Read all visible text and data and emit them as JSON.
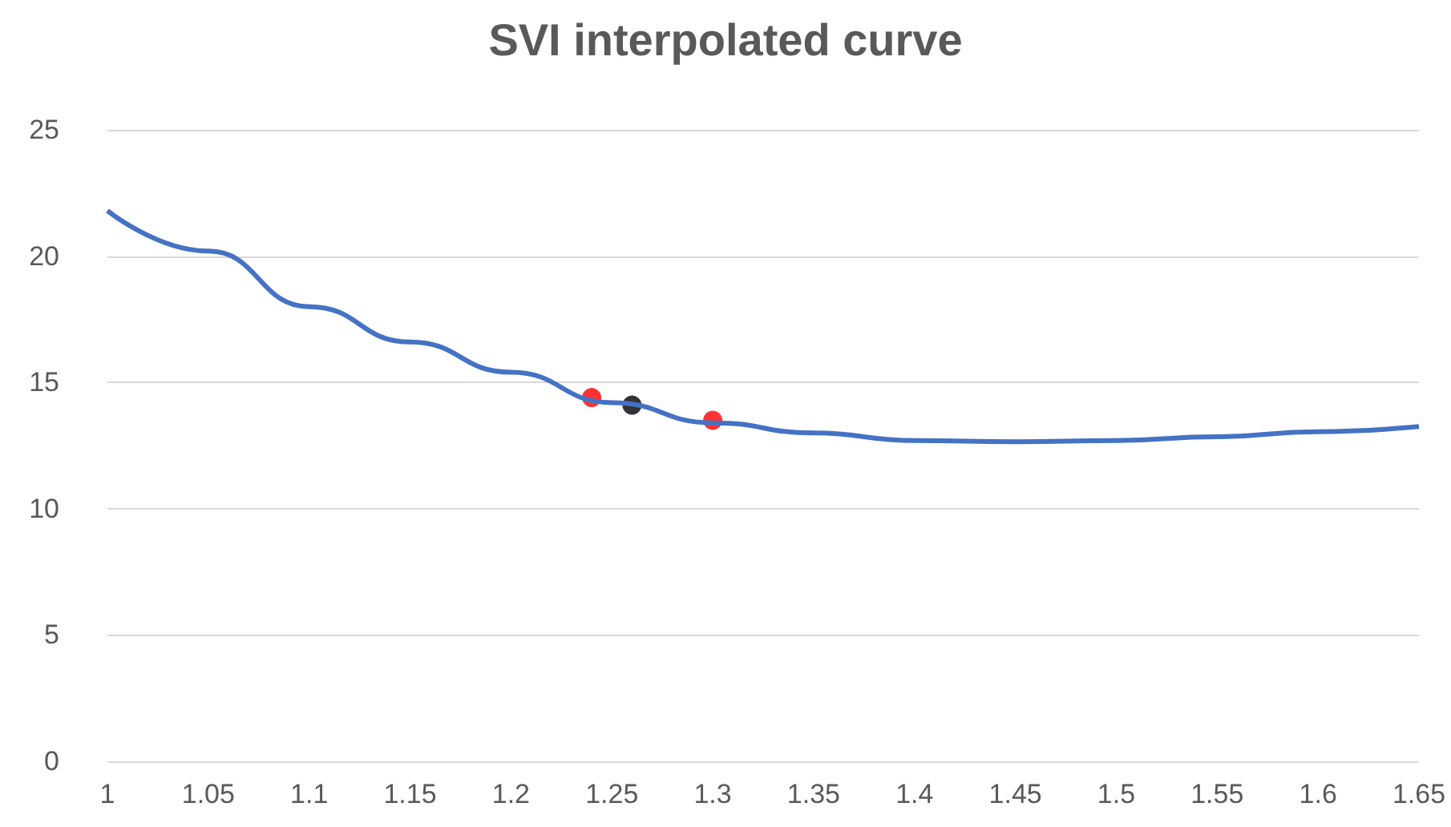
{
  "chart_data": {
    "type": "line",
    "title": "SVI interpolated curve",
    "xlim": [
      1,
      1.65
    ],
    "xticks": [
      1,
      1.05,
      1.1,
      1.15,
      1.2,
      1.25,
      1.3,
      1.35,
      1.4,
      1.45,
      1.5,
      1.55,
      1.6,
      1.65
    ],
    "ylim": [
      0,
      25
    ],
    "yticks": [
      0,
      5,
      10,
      15,
      20,
      25
    ],
    "grid": "y",
    "series": [
      {
        "type": "line",
        "color": "#4472c4",
        "marker": "none",
        "x": [
          1,
          1.05,
          1.1,
          1.15,
          1.2,
          1.25,
          1.3,
          1.35,
          1.4,
          1.45,
          1.5,
          1.55,
          1.6,
          1.65
        ],
        "values": [
          21.8,
          20.2,
          18.0,
          16.6,
          15.4,
          14.2,
          13.4,
          13.0,
          12.7,
          12.65,
          12.7,
          12.85,
          13.05,
          13.25
        ]
      },
      {
        "type": "scatter",
        "color": "#ff0000",
        "marker": "circle",
        "x": [
          1.24,
          1.3
        ],
        "values": [
          14.4,
          13.5
        ]
      },
      {
        "type": "scatter",
        "color": "#000000",
        "marker": "circle",
        "x": [
          1.26
        ],
        "values": [
          14.1
        ]
      }
    ]
  }
}
